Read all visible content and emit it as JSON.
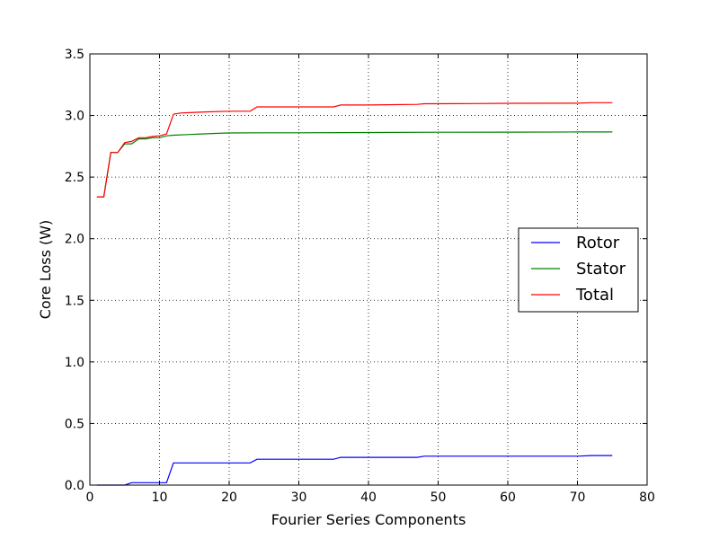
{
  "chart_data": {
    "type": "line",
    "title": "",
    "xlabel": "Fourier Series Components",
    "ylabel": "Core Loss (W)",
    "xlim": [
      0,
      80
    ],
    "ylim": [
      0.0,
      3.5
    ],
    "xticks": [
      0,
      10,
      20,
      30,
      40,
      50,
      60,
      70,
      80
    ],
    "yticks": [
      0.0,
      0.5,
      1.0,
      1.5,
      2.0,
      2.5,
      3.0,
      3.5
    ],
    "xtick_labels": [
      "0",
      "10",
      "20",
      "30",
      "40",
      "50",
      "60",
      "70",
      "80"
    ],
    "ytick_labels": [
      "0.0",
      "0.5",
      "1.0",
      "1.5",
      "2.0",
      "2.5",
      "3.0",
      "3.5"
    ],
    "grid": true,
    "legend_position": "center-right",
    "series": [
      {
        "name": "Rotor",
        "color": "#0000ff",
        "x": [
          1,
          2,
          3,
          4,
          5,
          6,
          7,
          8,
          9,
          10,
          11,
          12,
          13,
          15,
          17,
          20,
          23,
          24,
          30,
          35,
          36,
          40,
          47,
          48,
          55,
          60,
          70,
          72,
          75
        ],
        "y": [
          0.0,
          0.0,
          0.0,
          0.0,
          0.0,
          0.02,
          0.02,
          0.02,
          0.02,
          0.02,
          0.02,
          0.18,
          0.18,
          0.18,
          0.18,
          0.18,
          0.18,
          0.21,
          0.21,
          0.21,
          0.225,
          0.225,
          0.225,
          0.235,
          0.235,
          0.235,
          0.235,
          0.24,
          0.24
        ]
      },
      {
        "name": "Stator",
        "color": "#008000",
        "x": [
          1,
          2,
          3,
          4,
          5,
          6,
          7,
          8,
          9,
          10,
          11,
          12,
          14,
          16,
          18,
          20,
          25,
          30,
          40,
          50,
          60,
          70,
          75
        ],
        "y": [
          2.34,
          2.34,
          2.7,
          2.7,
          2.77,
          2.77,
          2.81,
          2.81,
          2.82,
          2.82,
          2.835,
          2.84,
          2.845,
          2.85,
          2.855,
          2.858,
          2.86,
          2.86,
          2.862,
          2.864,
          2.865,
          2.866,
          2.866
        ]
      },
      {
        "name": "Total",
        "color": "#ff0000",
        "x": [
          1,
          2,
          3,
          4,
          5,
          6,
          7,
          8,
          9,
          10,
          11,
          12,
          13,
          15,
          17,
          20,
          23,
          24,
          30,
          35,
          36,
          40,
          47,
          48,
          55,
          60,
          70,
          72,
          75
        ],
        "y": [
          2.34,
          2.34,
          2.7,
          2.7,
          2.78,
          2.79,
          2.82,
          2.82,
          2.83,
          2.835,
          2.85,
          3.01,
          3.02,
          3.025,
          3.03,
          3.035,
          3.035,
          3.07,
          3.07,
          3.07,
          3.085,
          3.085,
          3.09,
          3.095,
          3.097,
          3.099,
          3.1,
          3.104,
          3.104
        ]
      }
    ]
  }
}
